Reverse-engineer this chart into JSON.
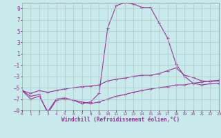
{
  "xlabel": "Windchill (Refroidissement éolien,°C)",
  "ylabel": "",
  "bg_color": "#c8eaea",
  "line_color": "#993399",
  "grid_color": "#b0c8c8",
  "xlim": [
    0,
    23
  ],
  "ylim": [
    -9,
    10
  ],
  "yticks": [
    -9,
    -7,
    -5,
    -3,
    -1,
    1,
    3,
    5,
    7,
    9
  ],
  "xticks": [
    0,
    1,
    2,
    3,
    4,
    5,
    6,
    7,
    8,
    9,
    10,
    11,
    12,
    13,
    14,
    15,
    16,
    17,
    18,
    19,
    20,
    21,
    22,
    23
  ],
  "line1_x": [
    0,
    1,
    2,
    3,
    4,
    5,
    6,
    7,
    8,
    9,
    10,
    11,
    12,
    13,
    14,
    15,
    16,
    17,
    18,
    19,
    20,
    21,
    22,
    23
  ],
  "line1_y": [
    -5.5,
    -7.0,
    -6.5,
    -9.2,
    -7.0,
    -6.8,
    -7.2,
    -7.8,
    -7.5,
    -6.0,
    5.5,
    9.5,
    10.0,
    9.8,
    9.2,
    9.2,
    6.5,
    3.8,
    -0.8,
    -3.0,
    -4.2,
    -4.0,
    -3.8,
    -3.7
  ],
  "line2_x": [
    0,
    1,
    2,
    3,
    4,
    5,
    6,
    7,
    8,
    9,
    10,
    11,
    12,
    13,
    14,
    15,
    16,
    17,
    18,
    19,
    20,
    21,
    22,
    23
  ],
  "line2_y": [
    -5.5,
    -6.0,
    -5.5,
    -5.8,
    -5.5,
    -5.2,
    -5.0,
    -4.8,
    -4.7,
    -4.5,
    -3.8,
    -3.5,
    -3.3,
    -3.0,
    -2.8,
    -2.8,
    -2.5,
    -2.0,
    -1.5,
    -2.8,
    -3.2,
    -3.8,
    -3.9,
    -3.8
  ],
  "line3_x": [
    0,
    1,
    2,
    3,
    4,
    5,
    6,
    7,
    8,
    9,
    10,
    11,
    12,
    13,
    14,
    15,
    16,
    17,
    18,
    19,
    20,
    21,
    22,
    23
  ],
  "line3_y": [
    -5.5,
    -6.5,
    -6.2,
    -9.5,
    -7.2,
    -7.0,
    -7.2,
    -7.5,
    -7.8,
    -7.5,
    -7.0,
    -6.5,
    -6.2,
    -5.8,
    -5.5,
    -5.2,
    -5.0,
    -4.8,
    -4.5,
    -4.5,
    -4.2,
    -4.5,
    -4.3,
    -4.2
  ]
}
